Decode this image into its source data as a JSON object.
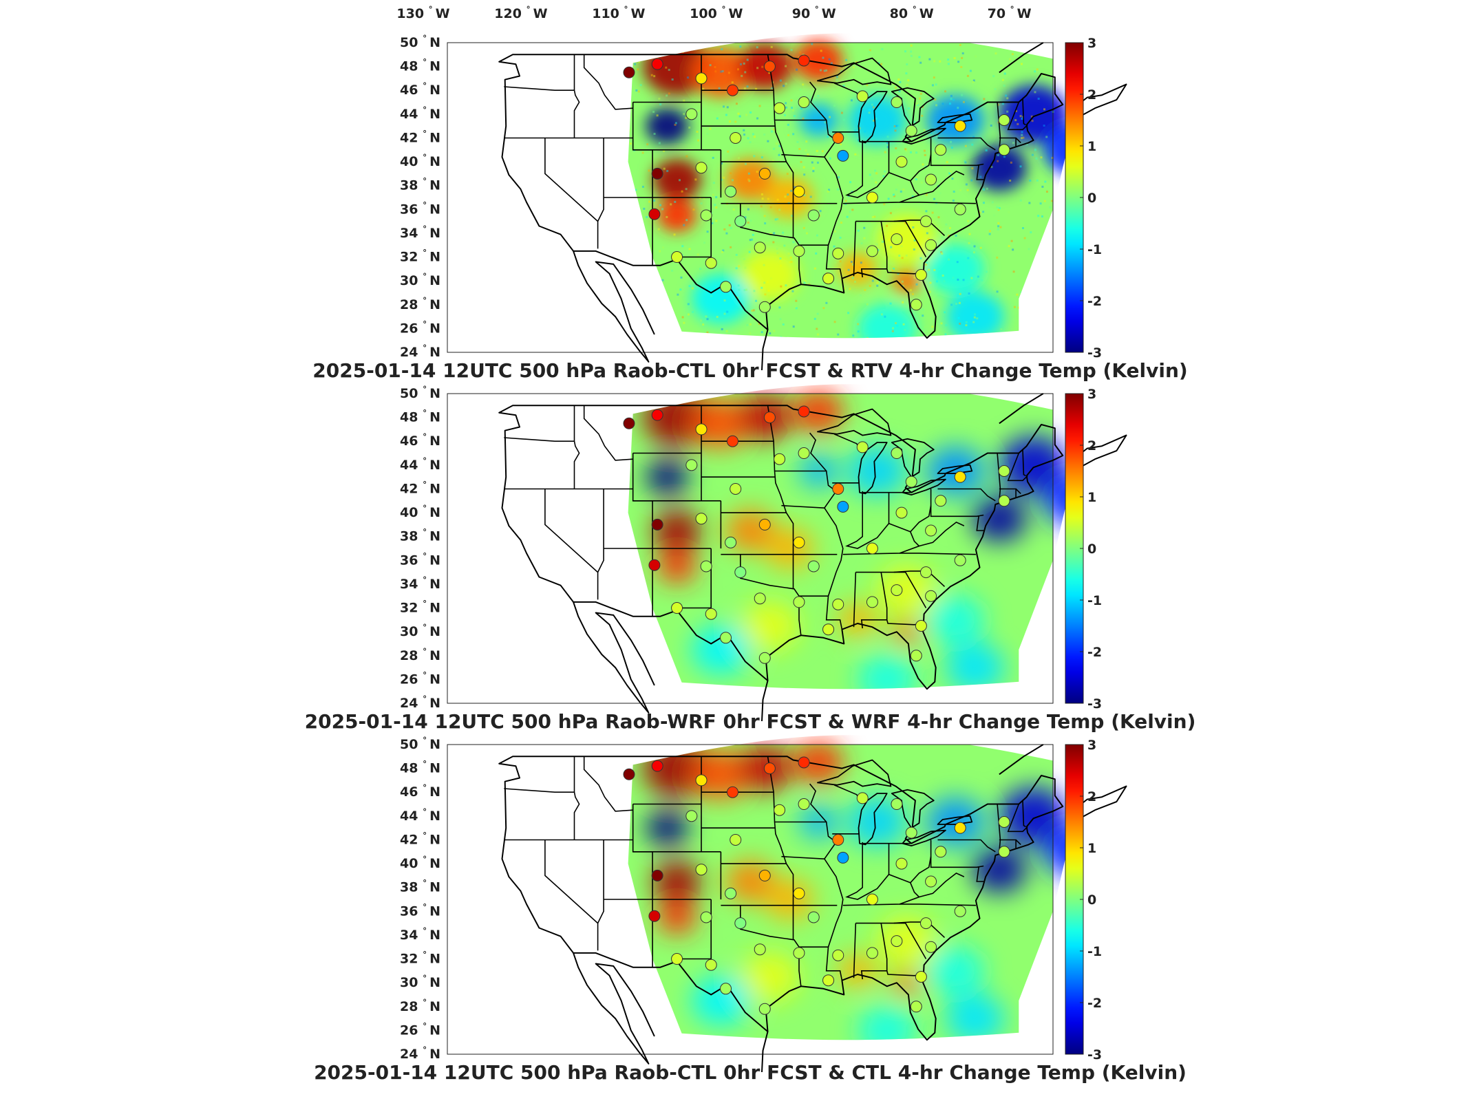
{
  "longitude_labels": [
    "130° W",
    "120° W",
    "110° W",
    "100° W",
    "90° W",
    "80° W",
    "70° W"
  ],
  "latitude_labels": [
    "50° N",
    "48° N",
    "46° N",
    "44° N",
    "42° N",
    "40° N",
    "38° N",
    "36° N",
    "34° N",
    "32° N",
    "30° N",
    "28° N",
    "26° N",
    "24° N"
  ],
  "colorbar": {
    "ticks": [
      "3",
      "2",
      "1",
      "0",
      "-1",
      "-2",
      "-3"
    ],
    "range": [
      -3,
      3
    ],
    "colormap": "jet",
    "colors": [
      "#00007f",
      "#0000ff",
      "#007fff",
      "#00ffff",
      "#7fff7f",
      "#ffff00",
      "#ff7f00",
      "#ff0000",
      "#7f0000"
    ]
  },
  "panels": [
    {
      "title": "2025-01-14 12UTC 500 hPa Raob-CTL 0hr FCST & RTV 4-hr Change Temp (Kelvin)",
      "noisy": true
    },
    {
      "title": "2025-01-14 12UTC 500 hPa Raob-WRF 0hr FCST & WRF 4-hr Change Temp (Kelvin)",
      "noisy": false
    },
    {
      "title": "2025-01-14 12UTC 500 hPa Raob-CTL 0hr FCST & CTL 4-hr Change Temp (Kelvin)",
      "noisy": false
    }
  ],
  "field_features": [
    {
      "lon": -106.5,
      "lat": 48.0,
      "value": 2.8,
      "spread": 3.5
    },
    {
      "lon": -102.0,
      "lat": 47.5,
      "value": 1.8,
      "spread": 3.0
    },
    {
      "lon": -97.5,
      "lat": 48.0,
      "value": 2.6,
      "spread": 2.8
    },
    {
      "lon": -92.0,
      "lat": 48.5,
      "value": 2.0,
      "spread": 2.5
    },
    {
      "lon": -107.5,
      "lat": 43.0,
      "value": -3.0,
      "spread": 2.2
    },
    {
      "lon": -106.5,
      "lat": 38.5,
      "value": 2.8,
      "spread": 2.5
    },
    {
      "lon": -106.5,
      "lat": 35.5,
      "value": 2.0,
      "spread": 2.0
    },
    {
      "lon": -99.0,
      "lat": 38.5,
      "value": 1.5,
      "spread": 2.5
    },
    {
      "lon": -95.0,
      "lat": 37.0,
      "value": 1.2,
      "spread": 2.5
    },
    {
      "lon": -92.0,
      "lat": 43.5,
      "value": -1.2,
      "spread": 2.0
    },
    {
      "lon": -86.0,
      "lat": 43.5,
      "value": -1.0,
      "spread": 3.0
    },
    {
      "lon": -78.0,
      "lat": 43.5,
      "value": -1.4,
      "spread": 3.0
    },
    {
      "lon": -73.5,
      "lat": 39.5,
      "value": -2.8,
      "spread": 2.8
    },
    {
      "lon": -70.0,
      "lat": 44.0,
      "value": -2.5,
      "spread": 3.5
    },
    {
      "lon": -66.0,
      "lat": 41.0,
      "value": -2.0,
      "spread": 3.0
    },
    {
      "lon": -83.0,
      "lat": 33.5,
      "value": 0.6,
      "spread": 3.0
    },
    {
      "lon": -88.0,
      "lat": 31.0,
      "value": 1.2,
      "spread": 2.0
    },
    {
      "lon": -83.0,
      "lat": 30.0,
      "value": 1.6,
      "spread": 1.5
    },
    {
      "lon": -97.0,
      "lat": 30.5,
      "value": 0.6,
      "spread": 3.0
    },
    {
      "lon": -102.0,
      "lat": 28.5,
      "value": -0.8,
      "spread": 3.0
    },
    {
      "lon": -78.0,
      "lat": 31.0,
      "value": -0.6,
      "spread": 3.0
    },
    {
      "lon": -85.0,
      "lat": 26.0,
      "value": -0.6,
      "spread": 3.0
    },
    {
      "lon": -76.0,
      "lat": 27.0,
      "value": -0.9,
      "spread": 3.0
    }
  ],
  "raob_stations": [
    {
      "lon": -111.4,
      "lat": 47.5,
      "value": 3.0
    },
    {
      "lon": -108.5,
      "lat": 48.2,
      "value": 2.3
    },
    {
      "lon": -104.0,
      "lat": 47.0,
      "value": 0.9
    },
    {
      "lon": -100.8,
      "lat": 46.0,
      "value": 1.9
    },
    {
      "lon": -97.0,
      "lat": 48.0,
      "value": 1.8
    },
    {
      "lon": -93.5,
      "lat": 48.5,
      "value": 2.0
    },
    {
      "lon": -105.0,
      "lat": 44.0,
      "value": 0.2
    },
    {
      "lon": -100.5,
      "lat": 42.0,
      "value": 0.4
    },
    {
      "lon": -96.0,
      "lat": 44.5,
      "value": 0.4
    },
    {
      "lon": -93.5,
      "lat": 45.0,
      "value": 0.3
    },
    {
      "lon": -90.0,
      "lat": 42.0,
      "value": 1.5
    },
    {
      "lon": -89.5,
      "lat": 40.5,
      "value": -1.3
    },
    {
      "lon": -108.5,
      "lat": 39.0,
      "value": 3.0
    },
    {
      "lon": -108.8,
      "lat": 35.6,
      "value": 2.5
    },
    {
      "lon": -104.0,
      "lat": 39.5,
      "value": 0.4
    },
    {
      "lon": -101.0,
      "lat": 37.5,
      "value": 0.1
    },
    {
      "lon": -97.5,
      "lat": 39.0,
      "value": 1.2
    },
    {
      "lon": -94.0,
      "lat": 37.5,
      "value": 0.9
    },
    {
      "lon": -103.5,
      "lat": 35.5,
      "value": 0.2
    },
    {
      "lon": -100.0,
      "lat": 35.0,
      "value": 0.0
    },
    {
      "lon": -92.5,
      "lat": 35.5,
      "value": 0.1
    },
    {
      "lon": -106.5,
      "lat": 32.0,
      "value": 0.5
    },
    {
      "lon": -103.0,
      "lat": 31.5,
      "value": 0.4
    },
    {
      "lon": -98.0,
      "lat": 32.8,
      "value": 0.3
    },
    {
      "lon": -94.0,
      "lat": 32.5,
      "value": 0.3
    },
    {
      "lon": -90.0,
      "lat": 32.3,
      "value": 0.4
    },
    {
      "lon": -86.5,
      "lat": 32.5,
      "value": 0.3
    },
    {
      "lon": -84.0,
      "lat": 33.5,
      "value": 0.4
    },
    {
      "lon": -80.5,
      "lat": 33.0,
      "value": 0.3
    },
    {
      "lon": -81.5,
      "lat": 30.5,
      "value": 0.5
    },
    {
      "lon": -91.0,
      "lat": 30.2,
      "value": 0.5
    },
    {
      "lon": -97.5,
      "lat": 27.8,
      "value": 0.2
    },
    {
      "lon": -101.5,
      "lat": 29.5,
      "value": 0.2
    },
    {
      "lon": -82.0,
      "lat": 28.0,
      "value": 0.3
    },
    {
      "lon": -86.5,
      "lat": 37.0,
      "value": 0.6
    },
    {
      "lon": -83.5,
      "lat": 40.0,
      "value": 0.4
    },
    {
      "lon": -82.5,
      "lat": 42.6,
      "value": 0.2
    },
    {
      "lon": -79.5,
      "lat": 41.0,
      "value": 0.3
    },
    {
      "lon": -77.5,
      "lat": 43.0,
      "value": 0.9
    },
    {
      "lon": -84.0,
      "lat": 45.0,
      "value": 0.2
    },
    {
      "lon": -87.5,
      "lat": 45.5,
      "value": 0.4
    },
    {
      "lon": -80.5,
      "lat": 38.5,
      "value": 0.3
    },
    {
      "lon": -77.5,
      "lat": 36.0,
      "value": 0.2
    },
    {
      "lon": -73.0,
      "lat": 41.0,
      "value": 0.3
    },
    {
      "lon": -73.0,
      "lat": 43.5,
      "value": 0.3
    },
    {
      "lon": -81.0,
      "lat": 35.0,
      "value": 0.3
    }
  ]
}
